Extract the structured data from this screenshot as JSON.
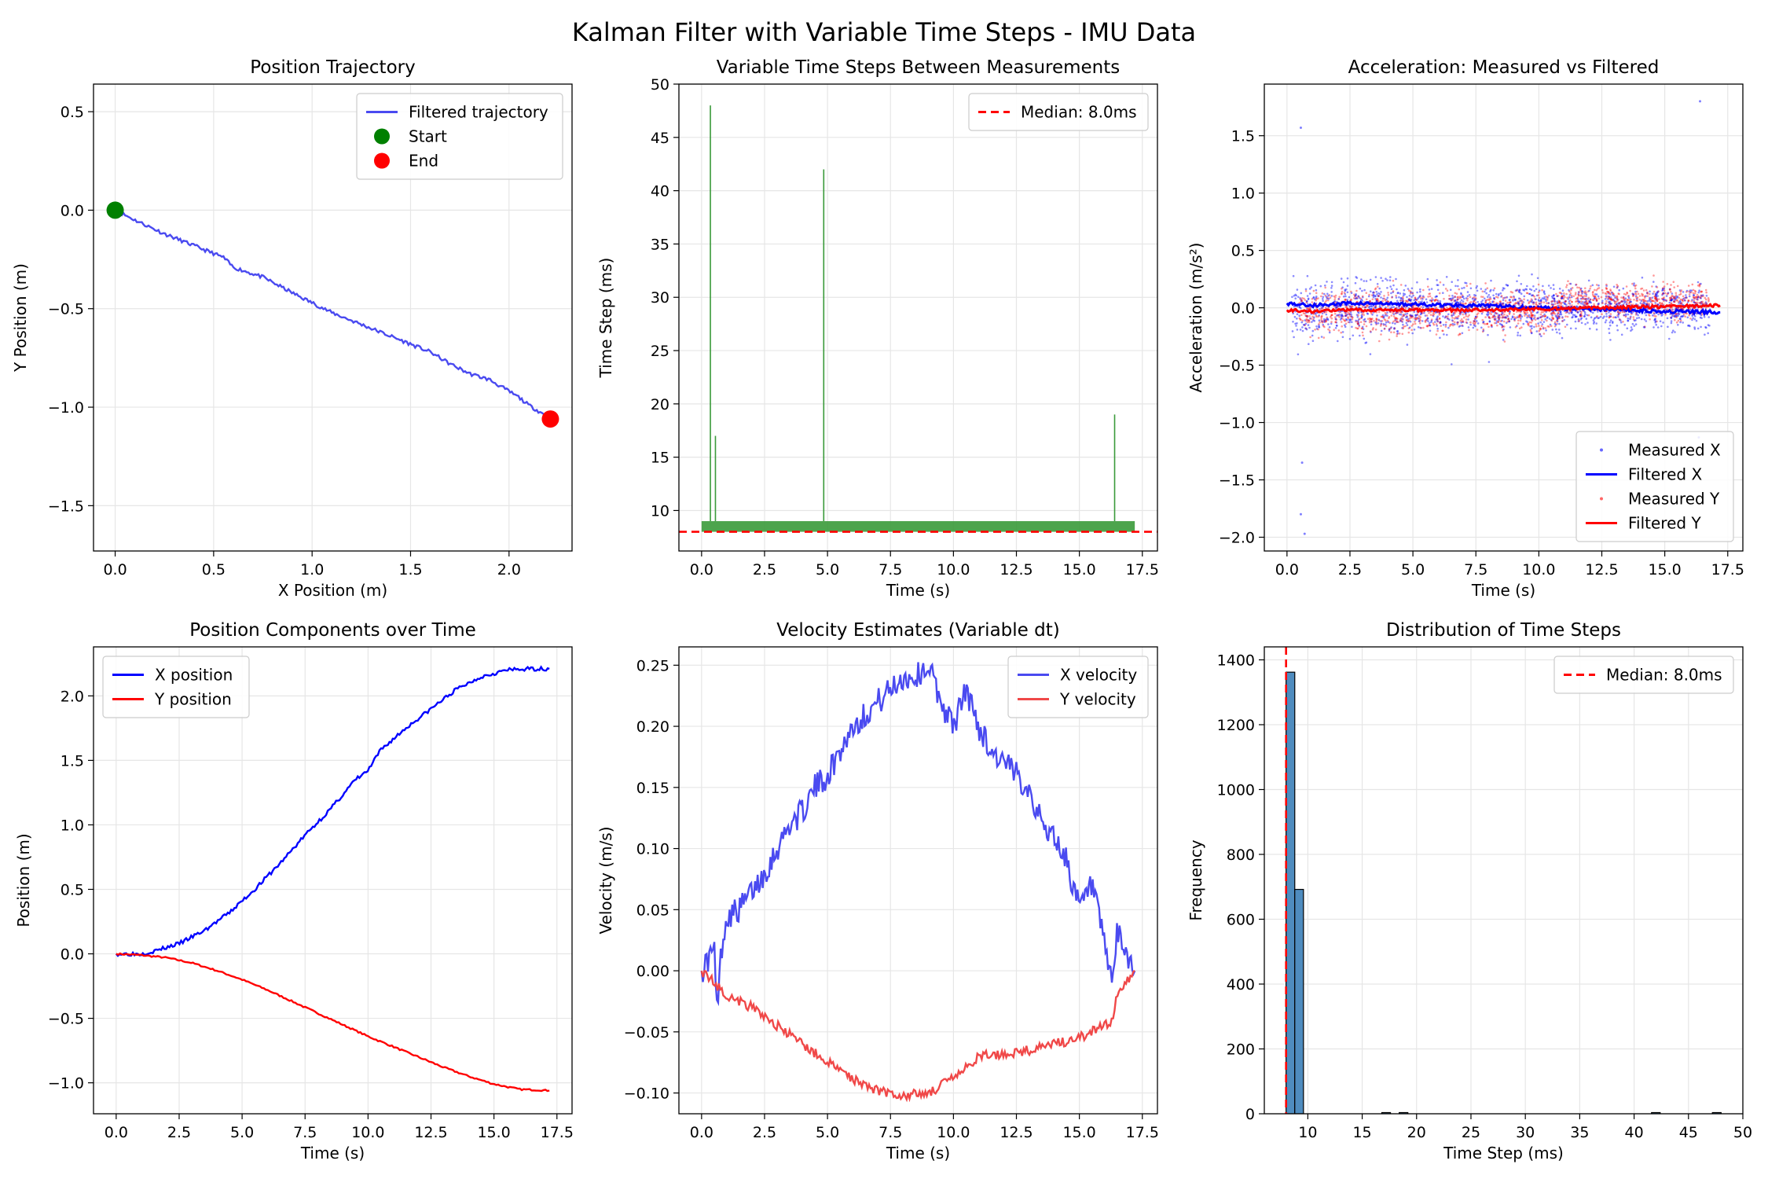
{
  "title": "Kalman Filter with Variable Time Steps - IMU Data",
  "colors": {
    "blue": "#0000ff",
    "blue_alpha": "#4a4af0",
    "red": "#ff0000",
    "red_alpha": "#f04848",
    "green": "#008000",
    "green_bar": "#3a9a3a",
    "hist": "#4f8cbf",
    "grid": "#e6e6e6"
  },
  "chart_data": [
    {
      "type": "line",
      "title": "Position Trajectory",
      "xlabel": "X Position (m)",
      "ylabel": "Y Position (m)",
      "xlim": [
        -0.11,
        2.32
      ],
      "ylim": [
        -1.73,
        0.64
      ],
      "xticks": [
        "0.0",
        "0.5",
        "1.0",
        "1.5",
        "2.0"
      ],
      "yticks": [
        "0.5",
        "0.0",
        "−0.5",
        "−1.0",
        "−1.5"
      ],
      "grid": true,
      "legend": {
        "placement": "top-right",
        "entries": [
          "Filtered trajectory",
          "Start",
          "End"
        ]
      },
      "series": [
        {
          "name": "Filtered trajectory",
          "x": [
            0,
            0.1,
            0.25,
            0.4,
            0.55,
            0.6,
            0.75,
            0.9,
            1.0,
            1.1,
            1.25,
            1.4,
            1.5,
            1.6,
            1.7,
            1.8,
            1.9,
            2.0,
            2.05,
            2.1,
            2.15,
            2.2
          ],
          "y": [
            0,
            -0.05,
            -0.12,
            -0.18,
            -0.24,
            -0.29,
            -0.34,
            -0.42,
            -0.47,
            -0.52,
            -0.58,
            -0.64,
            -0.68,
            -0.72,
            -0.78,
            -0.83,
            -0.86,
            -0.92,
            -0.95,
            -0.99,
            -1.02,
            -1.05
          ]
        }
      ],
      "points": [
        {
          "name": "Start",
          "x": 0,
          "y": 0
        },
        {
          "name": "End",
          "x": 2.21,
          "y": -1.06
        }
      ]
    },
    {
      "type": "bar",
      "title": "Variable Time Steps Between Measurements",
      "xlabel": "Time (s)",
      "ylabel": "Time Step (ms)",
      "xlim": [
        -0.9,
        18.1
      ],
      "ylim": [
        6.2,
        50
      ],
      "xticks": [
        "0.0",
        "2.5",
        "5.0",
        "7.5",
        "10.0",
        "12.5",
        "15.0",
        "17.5"
      ],
      "yticks": [
        "50",
        "45",
        "40",
        "35",
        "30",
        "25",
        "20",
        "15",
        "10"
      ],
      "grid": true,
      "legend": {
        "placement": "top-right",
        "entries": [
          "Median: 8.0ms"
        ]
      },
      "baseline_band": [
        0,
        17.2,
        8,
        9
      ],
      "spikes": [
        {
          "x": 0.35,
          "y": 48
        },
        {
          "x": 0.55,
          "y": 17
        },
        {
          "x": 4.85,
          "y": 42
        },
        {
          "x": 16.4,
          "y": 19
        }
      ],
      "median": 8.0
    },
    {
      "type": "scatter",
      "title": "Acceleration: Measured vs Filtered",
      "xlabel": "Time (s)",
      "ylabel": "Acceleration (m/s²)",
      "xlim": [
        -0.9,
        18.1
      ],
      "ylim": [
        -2.12,
        1.95
      ],
      "xticks": [
        "0.0",
        "2.5",
        "5.0",
        "7.5",
        "10.0",
        "12.5",
        "15.0",
        "17.5"
      ],
      "yticks": [
        "1.5",
        "1.0",
        "0.5",
        "0.0",
        "−0.5",
        "−1.0",
        "−1.5",
        "−2.0"
      ],
      "grid": true,
      "legend": {
        "placement": "bottom-right",
        "entries": [
          "Measured X",
          "Filtered X",
          "Measured Y",
          "Filtered Y"
        ]
      },
      "series": [
        {
          "name": "Filtered X",
          "x": [
            0,
            1,
            2.5,
            5,
            7.5,
            10,
            12.5,
            15,
            17.2
          ],
          "y": [
            0.04,
            0.02,
            0.04,
            0.03,
            0.02,
            0.0,
            -0.01,
            -0.03,
            -0.04
          ]
        },
        {
          "name": "Filtered Y",
          "x": [
            0,
            1,
            2.5,
            5,
            7.5,
            10,
            12.5,
            15,
            17.2
          ],
          "y": [
            -0.02,
            -0.03,
            -0.02,
            -0.02,
            -0.02,
            -0.01,
            0.0,
            0.01,
            0.02
          ]
        }
      ]
    },
    {
      "type": "line",
      "title": "Position Components over Time",
      "xlabel": "Time (s)",
      "ylabel": "Position (m)",
      "xlim": [
        -0.9,
        18.1
      ],
      "ylim": [
        -1.24,
        2.38
      ],
      "xticks": [
        "0.0",
        "2.5",
        "5.0",
        "7.5",
        "10.0",
        "12.5",
        "15.0",
        "17.5"
      ],
      "yticks": [
        "2.0",
        "1.5",
        "1.0",
        "0.5",
        "0.0",
        "−0.5",
        "−1.0"
      ],
      "grid": true,
      "legend": {
        "placement": "top-left",
        "entries": [
          "X position",
          "Y position"
        ]
      },
      "series": [
        {
          "name": "X position",
          "x": [
            0,
            1,
            1.5,
            2.5,
            3.5,
            4.5,
            5.5,
            6.5,
            7.5,
            8.5,
            9.5,
            10,
            10.5,
            11.5,
            12.5,
            13.5,
            14.5,
            15.5,
            16.5,
            17.2
          ],
          "y": [
            0,
            0.0,
            0.02,
            0.08,
            0.18,
            0.32,
            0.5,
            0.7,
            0.92,
            1.12,
            1.35,
            1.42,
            1.58,
            1.75,
            1.9,
            2.05,
            2.15,
            2.2,
            2.21,
            2.21
          ]
        },
        {
          "name": "Y position",
          "x": [
            0,
            1,
            2,
            3,
            4,
            5,
            6,
            7,
            8,
            9,
            10,
            11,
            12,
            13,
            14,
            15,
            16,
            17.2
          ],
          "y": [
            0,
            -0.01,
            -0.03,
            -0.07,
            -0.13,
            -0.2,
            -0.28,
            -0.37,
            -0.46,
            -0.55,
            -0.64,
            -0.72,
            -0.8,
            -0.88,
            -0.95,
            -1.01,
            -1.05,
            -1.06
          ]
        }
      ]
    },
    {
      "type": "line",
      "title": "Velocity Estimates (Variable dt)",
      "xlabel": "Time (s)",
      "ylabel": "Velocity (m/s)",
      "xlim": [
        -0.9,
        18.1
      ],
      "ylim": [
        -0.117,
        0.265
      ],
      "xticks": [
        "0.0",
        "2.5",
        "5.0",
        "7.5",
        "10.0",
        "12.5",
        "15.0",
        "17.5"
      ],
      "yticks": [
        "0.25",
        "0.20",
        "0.15",
        "0.10",
        "0.05",
        "0.00",
        "−0.05",
        "−0.10"
      ],
      "grid": true,
      "legend": {
        "placement": "top-right",
        "entries": [
          "X velocity",
          "Y velocity"
        ]
      },
      "series": [
        {
          "name": "X velocity",
          "x": [
            0,
            0.5,
            0.6,
            0.8,
            1.0,
            1.5,
            2.0,
            2.5,
            3.0,
            3.5,
            4.0,
            4.5,
            5.0,
            5.5,
            6.0,
            6.5,
            7.0,
            7.5,
            8.0,
            8.5,
            9.0,
            9.5,
            10.0,
            10.5,
            11.0,
            11.5,
            12.0,
            12.5,
            13.0,
            13.5,
            14.0,
            14.5,
            15.0,
            15.5,
            16.0,
            16.3,
            16.5,
            17.2
          ],
          "y": [
            0,
            0.018,
            -0.033,
            0.02,
            0.045,
            0.05,
            0.065,
            0.08,
            0.1,
            0.12,
            0.13,
            0.15,
            0.16,
            0.18,
            0.2,
            0.21,
            0.22,
            0.23,
            0.24,
            0.24,
            0.25,
            0.22,
            0.2,
            0.23,
            0.2,
            0.18,
            0.17,
            0.16,
            0.15,
            0.12,
            0.11,
            0.09,
            0.05,
            0.07,
            0.02,
            -0.01,
            0.03,
            0.0
          ]
        },
        {
          "name": "Y velocity",
          "x": [
            0,
            0.5,
            1.0,
            2.0,
            3.0,
            4.0,
            5.0,
            6.0,
            7.0,
            8.0,
            9.0,
            10.0,
            10.5,
            11.0,
            12.0,
            13.0,
            14.0,
            15.0,
            15.5,
            16.0,
            16.3,
            16.5,
            17.2
          ],
          "y": [
            0,
            -0.01,
            -0.02,
            -0.03,
            -0.045,
            -0.06,
            -0.075,
            -0.088,
            -0.098,
            -0.102,
            -0.1,
            -0.088,
            -0.08,
            -0.07,
            -0.068,
            -0.065,
            -0.06,
            -0.055,
            -0.05,
            -0.045,
            -0.04,
            -0.02,
            0.0
          ]
        }
      ]
    },
    {
      "type": "bar",
      "title": "Distribution of Time Steps",
      "xlabel": "Time Step (ms)",
      "ylabel": "Frequency",
      "xlim": [
        6.0,
        50.0
      ],
      "ylim": [
        0,
        1440
      ],
      "xticks": [
        "10",
        "15",
        "20",
        "25",
        "30",
        "35",
        "40",
        "45",
        "50"
      ],
      "yticks": [
        "1400",
        "1200",
        "1000",
        "800",
        "600",
        "400",
        "200",
        "0"
      ],
      "grid": true,
      "legend": {
        "placement": "top-right",
        "entries": [
          "Median: 8.0ms"
        ]
      },
      "bins": [
        {
          "x0": 8.0,
          "x1": 8.8,
          "count": 1362
        },
        {
          "x0": 8.8,
          "x1": 9.6,
          "count": 692
        },
        {
          "x0": 16.8,
          "x1": 17.6,
          "count": 1
        },
        {
          "x0": 18.4,
          "x1": 19.2,
          "count": 1
        },
        {
          "x0": 41.6,
          "x1": 42.4,
          "count": 1
        },
        {
          "x0": 47.2,
          "x1": 48.0,
          "count": 1
        }
      ],
      "median": 8.0
    }
  ]
}
